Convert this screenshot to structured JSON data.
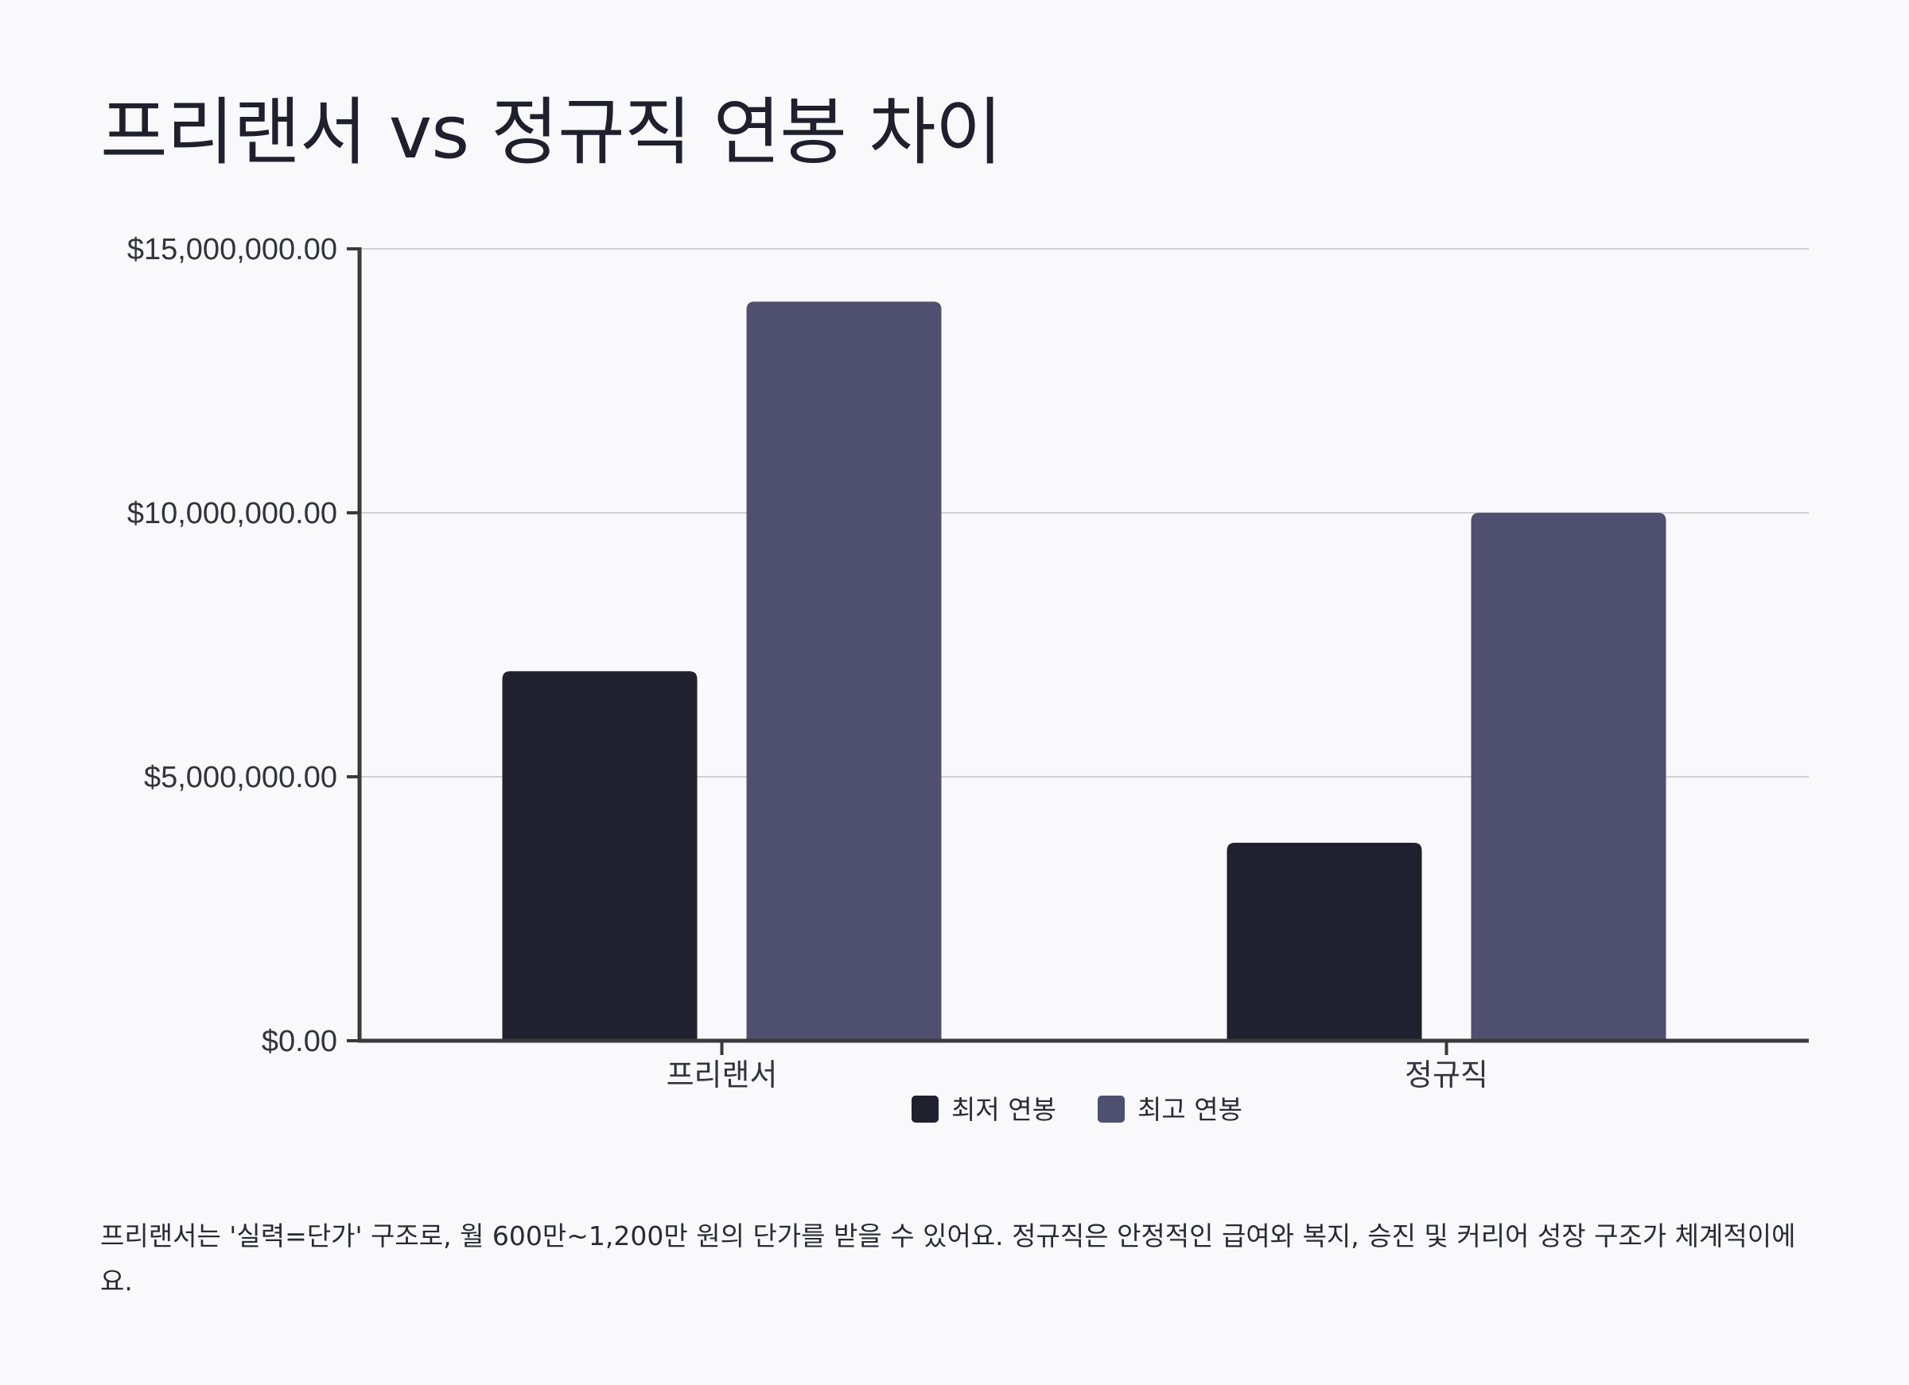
{
  "title": "프리랜서 vs 정규직 연봉 차이",
  "chart_data": {
    "type": "bar",
    "categories": [
      "프리랜서",
      "정규직"
    ],
    "series": [
      {
        "name": "최저 연봉",
        "values": [
          7000000,
          3750000
        ],
        "color": "#20202e"
      },
      {
        "name": "최고 연봉",
        "values": [
          14000000,
          10000000
        ],
        "color": "#4f5070"
      }
    ],
    "yticks": [
      0,
      5000000,
      10000000,
      15000000
    ],
    "ytick_labels": [
      "$0.00",
      "$5,000,000.00",
      "$10,000,000.00",
      "$15,000,000.00"
    ],
    "ylim": [
      0,
      15000000
    ],
    "grid": true,
    "legend": "bottom-center"
  },
  "note": "프리랜서는 '실력=단가' 구조로, 월 600만~1,200만 원의 단가를 받을 수 있어요. 정규직은 안정적인 급여와 복지, 승진 및 커리어 성장 구조가 체계적이에요."
}
